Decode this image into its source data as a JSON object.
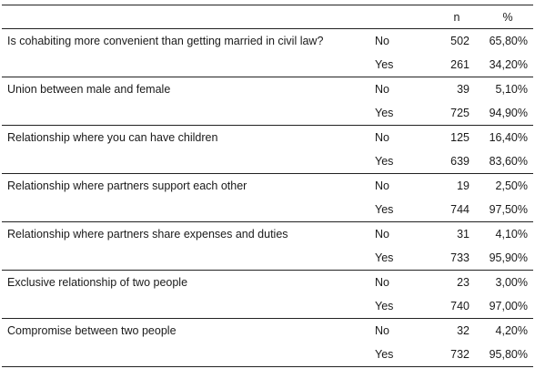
{
  "header": {
    "question": "",
    "answer": "",
    "n": "n",
    "percent": "%"
  },
  "rows": [
    {
      "question": "Is cohabiting more convenient than getting married in civil law?",
      "answers": [
        {
          "answer": "No",
          "n": "502",
          "percent": "65,80%"
        },
        {
          "answer": "Yes",
          "n": "261",
          "percent": "34,20%"
        }
      ]
    },
    {
      "question": "Union between male and female",
      "answers": [
        {
          "answer": "No",
          "n": "39",
          "percent": "5,10%"
        },
        {
          "answer": "Yes",
          "n": "725",
          "percent": "94,90%"
        }
      ]
    },
    {
      "question": "Relationship where you can have children",
      "answers": [
        {
          "answer": "No",
          "n": "125",
          "percent": "16,40%"
        },
        {
          "answer": "Yes",
          "n": "639",
          "percent": "83,60%"
        }
      ]
    },
    {
      "question": "Relationship where partners support each other",
      "answers": [
        {
          "answer": "No",
          "n": "19",
          "percent": "2,50%"
        },
        {
          "answer": "Yes",
          "n": "744",
          "percent": "97,50%"
        }
      ]
    },
    {
      "question": "Relationship where partners share expenses and duties",
      "answers": [
        {
          "answer": "No",
          "n": "31",
          "percent": "4,10%"
        },
        {
          "answer": "Yes",
          "n": "733",
          "percent": "95,90%"
        }
      ]
    },
    {
      "question": "Exclusive relationship of two people",
      "answers": [
        {
          "answer": "No",
          "n": "23",
          "percent": "3,00%"
        },
        {
          "answer": "Yes",
          "n": "740",
          "percent": "97,00%"
        }
      ]
    },
    {
      "question": "Compromise between two people",
      "answers": [
        {
          "answer": "No",
          "n": "32",
          "percent": "4,20%"
        },
        {
          "answer": "Yes",
          "n": "732",
          "percent": "95,80%"
        }
      ]
    }
  ]
}
